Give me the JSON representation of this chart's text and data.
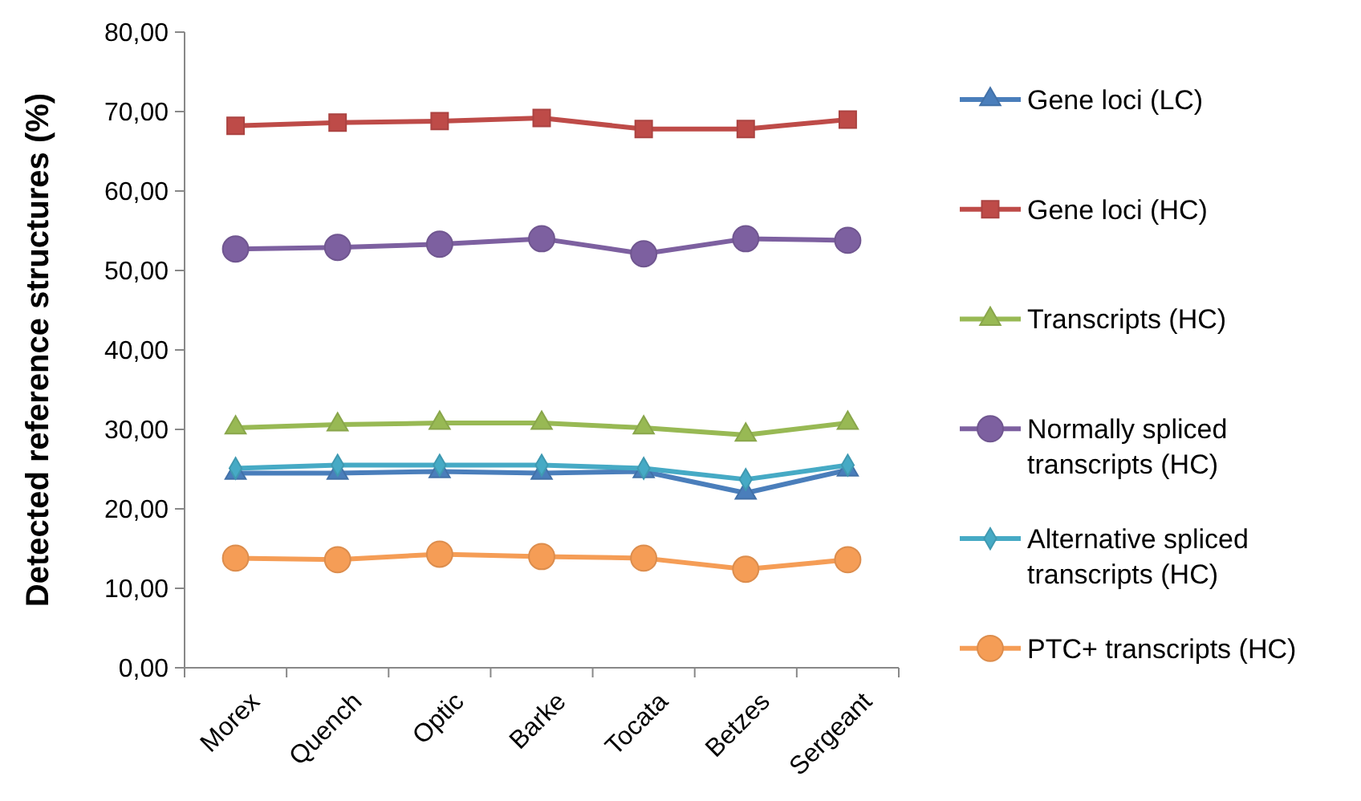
{
  "chart_data": {
    "type": "line",
    "ylabel": "Detected reference structures (%)",
    "categories": [
      "Morex",
      "Quench",
      "Optic",
      "Barke",
      "Tocata",
      "Betzes",
      "Sergeant"
    ],
    "ylim": [
      0,
      80
    ],
    "yticks": [
      {
        "value": 0,
        "label": "0,00"
      },
      {
        "value": 10,
        "label": "10,00"
      },
      {
        "value": 20,
        "label": "20,00"
      },
      {
        "value": 30,
        "label": "30,00"
      },
      {
        "value": 40,
        "label": "40,00"
      },
      {
        "value": 50,
        "label": "50,00"
      },
      {
        "value": 60,
        "label": "60,00"
      },
      {
        "value": 70,
        "label": "70,00"
      },
      {
        "value": 80,
        "label": "80,00"
      }
    ],
    "legend": "right",
    "grid": false,
    "series": [
      {
        "name": "Gene loci (LC)",
        "color": "#4a7ebb",
        "marker": "triangle",
        "values": [
          24.5,
          24.5,
          24.7,
          24.5,
          24.7,
          22.0,
          24.9
        ]
      },
      {
        "name": "Gene loci (HC)",
        "color": "#be4b48",
        "marker": "square",
        "values": [
          68.2,
          68.6,
          68.8,
          69.2,
          67.8,
          67.8,
          69.0
        ]
      },
      {
        "name": "Transcripts (HC)",
        "color": "#98b954",
        "marker": "triangle",
        "values": [
          30.2,
          30.6,
          30.8,
          30.8,
          30.2,
          29.3,
          30.8
        ]
      },
      {
        "name": "Normally spliced transcripts (HC)",
        "color": "#7d60a0",
        "marker": "circle",
        "values": [
          52.7,
          52.9,
          53.3,
          54.0,
          52.1,
          54.0,
          53.8
        ]
      },
      {
        "name": "Alternative spliced transcripts (HC)",
        "color": "#46aac5",
        "marker": "diamond",
        "values": [
          25.1,
          25.5,
          25.5,
          25.5,
          25.1,
          23.7,
          25.5
        ]
      },
      {
        "name": "PTC+ transcripts (HC)",
        "color": "#f59d56",
        "marker": "circle",
        "values": [
          13.8,
          13.6,
          14.3,
          14.0,
          13.8,
          12.4,
          13.6
        ]
      }
    ]
  }
}
